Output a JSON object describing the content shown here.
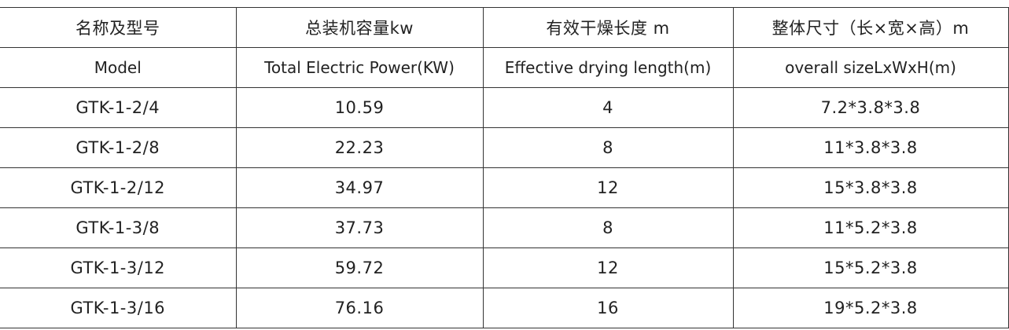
{
  "table": {
    "header": [
      [
        "名称及型号",
        "总装机容量kw",
        "有效干燥长度 m",
        "整体尺寸（长×宽×高）m"
      ],
      [
        "Model",
        "Total Electric Power(KW)",
        "Effective drying length(m)",
        "overall sizeLxWxH(m)"
      ]
    ],
    "rows": [
      [
        "GTK-1-2/4",
        "10.59",
        "4",
        "7.2*3.8*3.8"
      ],
      [
        "GTK-1-2/8",
        "22.23",
        "8",
        "11*3.8*3.8"
      ],
      [
        "GTK-1-2/12",
        "34.97",
        "12",
        "15*3.8*3.8"
      ],
      [
        "GTK-1-3/8",
        "37.73",
        "8",
        "11*5.2*3.8"
      ],
      [
        "GTK-1-3/12",
        "59.72",
        "12",
        "15*5.2*3.8"
      ],
      [
        "GTK-1-3/16",
        "76.16",
        "16",
        "19*5.2*3.8"
      ]
    ]
  }
}
